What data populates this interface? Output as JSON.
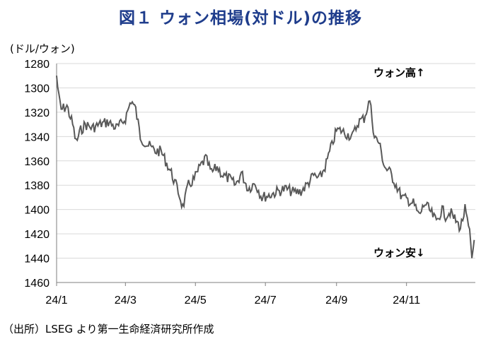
{
  "title": "図１ ウォン相場(対ドル)の推移",
  "unit_label": "(ドル/ウォン)",
  "source": "（出所）LSEG より第一生命経済研究所作成",
  "chart_data": {
    "type": "line",
    "title": "図１ ウォン相場(対ドル)の推移",
    "ylabel": "(ドル/ウォン)",
    "xlabel": "",
    "y_inverted": true,
    "ylim": [
      1280,
      1460
    ],
    "yticks": [
      "1280",
      "1300",
      "1320",
      "1340",
      "1360",
      "1380",
      "1400",
      "1420",
      "1440",
      "1460"
    ],
    "xticks": [
      "24/1",
      "24/3",
      "24/5",
      "24/7",
      "24/9",
      "24/11"
    ],
    "xlim": [
      "2024-01-01",
      "2024-12-31"
    ],
    "grid": true,
    "line_color": "#595959",
    "annotations": [
      {
        "text": "ウォン高",
        "arrow": "↑"
      },
      {
        "text": "ウォン安",
        "arrow": "↓"
      }
    ],
    "x": [
      "2024-01-01",
      "2024-01-03",
      "2024-01-05",
      "2024-01-10",
      "2024-01-15",
      "2024-01-18",
      "2024-01-22",
      "2024-01-26",
      "2024-02-01",
      "2024-02-08",
      "2024-02-15",
      "2024-02-22",
      "2024-02-26",
      "2024-03-01",
      "2024-03-06",
      "2024-03-10",
      "2024-03-14",
      "2024-03-18",
      "2024-03-22",
      "2024-03-27",
      "2024-04-01",
      "2024-04-05",
      "2024-04-10",
      "2024-04-16",
      "2024-04-20",
      "2024-04-25",
      "2024-04-30",
      "2024-05-05",
      "2024-05-10",
      "2024-05-15",
      "2024-05-20",
      "2024-05-25",
      "2024-05-31",
      "2024-06-05",
      "2024-06-10",
      "2024-06-16",
      "2024-06-22",
      "2024-06-28",
      "2024-07-05",
      "2024-07-12",
      "2024-07-19",
      "2024-07-26",
      "2024-08-01",
      "2024-08-06",
      "2024-08-12",
      "2024-08-17",
      "2024-08-22",
      "2024-08-27",
      "2024-09-01",
      "2024-09-05",
      "2024-09-10",
      "2024-09-15",
      "2024-09-20",
      "2024-09-25",
      "2024-09-30",
      "2024-10-04",
      "2024-10-08",
      "2024-10-13",
      "2024-10-18",
      "2024-10-23",
      "2024-10-28",
      "2024-11-02",
      "2024-11-07",
      "2024-11-12",
      "2024-11-17",
      "2024-11-22",
      "2024-11-27",
      "2024-12-02",
      "2024-12-05",
      "2024-12-09",
      "2024-12-13",
      "2024-12-18",
      "2024-12-22",
      "2024-12-26",
      "2024-12-28",
      "2024-12-30"
    ],
    "values": [
      1290,
      1308,
      1318,
      1315,
      1330,
      1345,
      1335,
      1330,
      1333,
      1330,
      1328,
      1333,
      1330,
      1325,
      1310,
      1318,
      1340,
      1345,
      1348,
      1352,
      1352,
      1360,
      1370,
      1385,
      1398,
      1380,
      1375,
      1365,
      1358,
      1370,
      1365,
      1372,
      1375,
      1380,
      1370,
      1383,
      1378,
      1390,
      1388,
      1385,
      1383,
      1386,
      1385,
      1380,
      1372,
      1375,
      1365,
      1350,
      1335,
      1335,
      1338,
      1340,
      1328,
      1325,
      1310,
      1340,
      1345,
      1365,
      1370,
      1380,
      1390,
      1392,
      1395,
      1405,
      1395,
      1402,
      1410,
      1400,
      1405,
      1402,
      1408,
      1415,
      1400,
      1420,
      1440,
      1425
    ]
  }
}
